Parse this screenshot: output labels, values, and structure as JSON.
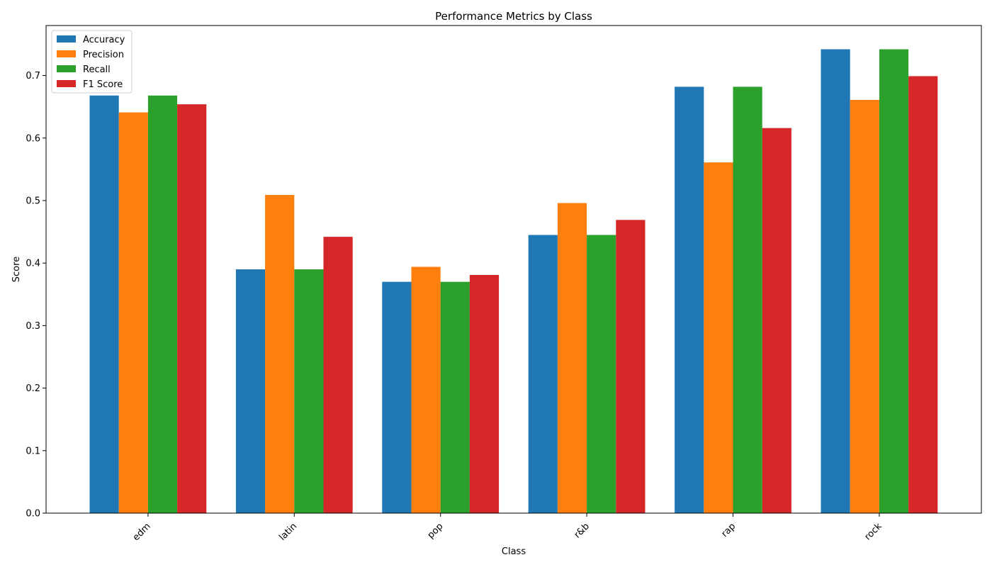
{
  "chart_data": {
    "type": "bar",
    "title": "Performance Metrics by Class",
    "xlabel": "Class",
    "ylabel": "Score",
    "ylim": [
      0,
      0.78
    ],
    "yticks": [
      0.0,
      0.1,
      0.2,
      0.3,
      0.4,
      0.5,
      0.6,
      0.7
    ],
    "ytick_labels": [
      "0.0",
      "0.1",
      "0.2",
      "0.3",
      "0.4",
      "0.5",
      "0.6",
      "0.7"
    ],
    "categories": [
      "edm",
      "latin",
      "pop",
      "r&b",
      "rap",
      "rock"
    ],
    "series": [
      {
        "name": "Accuracy",
        "color": "#1f77b4",
        "values": [
          0.668,
          0.39,
          0.37,
          0.445,
          0.682,
          0.742
        ]
      },
      {
        "name": "Precision",
        "color": "#ff7f0e",
        "values": [
          0.641,
          0.509,
          0.394,
          0.496,
          0.561,
          0.661
        ]
      },
      {
        "name": "Recall",
        "color": "#2ca02c",
        "values": [
          0.668,
          0.39,
          0.37,
          0.445,
          0.682,
          0.742
        ]
      },
      {
        "name": "F1 Score",
        "color": "#d62728",
        "values": [
          0.654,
          0.442,
          0.381,
          0.469,
          0.616,
          0.699
        ]
      }
    ],
    "grid": false,
    "legend_position": "top-left",
    "xtick_rotation": "45deg"
  }
}
